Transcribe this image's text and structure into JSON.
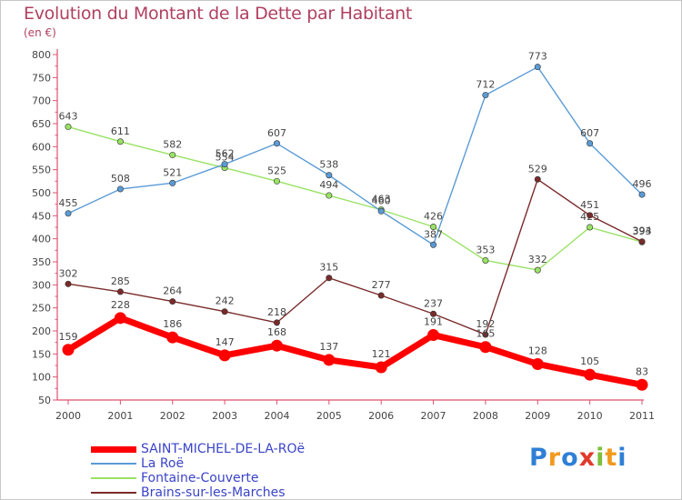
{
  "chart_data": {
    "type": "line",
    "title": "Evolution du Montant de la Dette par Habitant",
    "subtitle": "(en €)",
    "xlabel": "",
    "ylabel": "",
    "categories": [
      "2000",
      "2001",
      "2002",
      "2003",
      "2004",
      "2005",
      "2006",
      "2007",
      "2008",
      "2009",
      "2010",
      "2011"
    ],
    "ylim": [
      50,
      800
    ],
    "yticks": [
      50,
      100,
      150,
      200,
      250,
      300,
      350,
      400,
      450,
      500,
      550,
      600,
      650,
      700,
      750,
      800
    ],
    "grid": false,
    "legend_position": "bottom-left",
    "series": [
      {
        "name": "SAINT-MICHEL-DE-LA-ROë",
        "color": "#ff0000",
        "values": [
          159,
          228,
          186,
          147,
          168,
          137,
          121,
          191,
          165,
          128,
          105,
          83
        ]
      },
      {
        "name": "La Roë",
        "color": "#5b9bd5",
        "values": [
          455,
          508,
          521,
          562,
          607,
          538,
          460,
          387,
          712,
          773,
          607,
          496
        ]
      },
      {
        "name": "Fontaine-Couverte",
        "color": "#99e265",
        "values": [
          643,
          611,
          582,
          554,
          525,
          494,
          463,
          426,
          353,
          332,
          425,
          393
        ]
      },
      {
        "name": "Brains-sur-les-Marches",
        "color": "#7a2a2a",
        "values": [
          302,
          285,
          264,
          242,
          218,
          315,
          277,
          237,
          192,
          529,
          451,
          394
        ]
      }
    ]
  },
  "logo": {
    "letters": [
      "P",
      "r",
      "o",
      "x",
      "i",
      "t",
      "i"
    ],
    "colors": [
      "#2f7fd6",
      "#f29a1f",
      "#2f7fd6",
      "#e23a2a",
      "#7dbf3b",
      "#f29a1f",
      "#2f7fd6"
    ]
  }
}
